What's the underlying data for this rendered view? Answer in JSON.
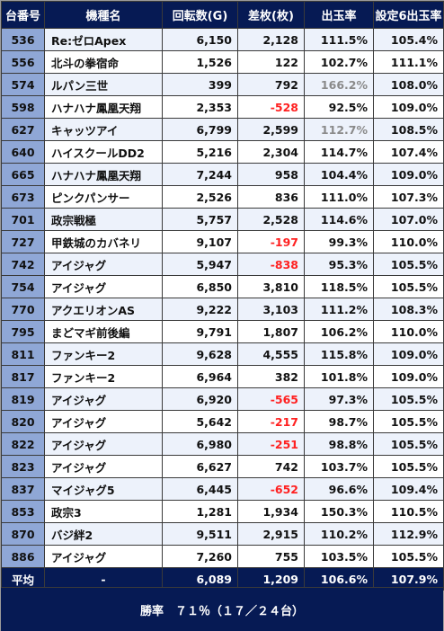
{
  "headers": [
    "台番号",
    "機種名",
    "回転数(G)",
    "差枚(枚)",
    "出玉率",
    "設定6出玉率"
  ],
  "rows": [
    {
      "no": "536",
      "name": "Re:ゼロApex",
      "spins": "6,150",
      "diff": "2,128",
      "rate": "111.5%",
      "set6": "105.4%",
      "diff_negative": false,
      "rate_muted": false
    },
    {
      "no": "556",
      "name": "北斗の拳宿命",
      "spins": "1,526",
      "diff": "122",
      "rate": "102.7%",
      "set6": "111.1%",
      "diff_negative": false,
      "rate_muted": false
    },
    {
      "no": "574",
      "name": "ルパン三世",
      "spins": "399",
      "diff": "792",
      "rate": "166.2%",
      "set6": "108.0%",
      "diff_negative": false,
      "rate_muted": true
    },
    {
      "no": "598",
      "name": "ハナハナ鳳凰天翔",
      "spins": "2,353",
      "diff": "-528",
      "rate": "92.5%",
      "set6": "109.0%",
      "diff_negative": true,
      "rate_muted": false
    },
    {
      "no": "627",
      "name": "キャッツアイ",
      "spins": "6,799",
      "diff": "2,599",
      "rate": "112.7%",
      "set6": "108.5%",
      "diff_negative": false,
      "rate_muted": true
    },
    {
      "no": "640",
      "name": "ハイスクールDD2",
      "spins": "5,216",
      "diff": "2,304",
      "rate": "114.7%",
      "set6": "107.4%",
      "diff_negative": false,
      "rate_muted": false
    },
    {
      "no": "665",
      "name": "ハナハナ鳳凰天翔",
      "spins": "7,244",
      "diff": "958",
      "rate": "104.4%",
      "set6": "109.0%",
      "diff_negative": false,
      "rate_muted": false
    },
    {
      "no": "673",
      "name": "ピンクパンサー",
      "spins": "2,526",
      "diff": "836",
      "rate": "111.0%",
      "set6": "107.3%",
      "diff_negative": false,
      "rate_muted": false
    },
    {
      "no": "701",
      "name": "政宗戦極",
      "spins": "5,757",
      "diff": "2,528",
      "rate": "114.6%",
      "set6": "107.0%",
      "diff_negative": false,
      "rate_muted": false
    },
    {
      "no": "727",
      "name": "甲鉄城のカバネリ",
      "spins": "9,107",
      "diff": "-197",
      "rate": "99.3%",
      "set6": "110.0%",
      "diff_negative": true,
      "rate_muted": false
    },
    {
      "no": "742",
      "name": "アイジャグ",
      "spins": "5,947",
      "diff": "-838",
      "rate": "95.3%",
      "set6": "105.5%",
      "diff_negative": true,
      "rate_muted": false
    },
    {
      "no": "754",
      "name": "アイジャグ",
      "spins": "6,850",
      "diff": "3,810",
      "rate": "118.5%",
      "set6": "105.5%",
      "diff_negative": false,
      "rate_muted": false
    },
    {
      "no": "770",
      "name": "アクエリオンAS",
      "spins": "9,222",
      "diff": "3,103",
      "rate": "111.2%",
      "set6": "108.3%",
      "diff_negative": false,
      "rate_muted": false
    },
    {
      "no": "795",
      "name": "まどマギ前後編",
      "spins": "9,791",
      "diff": "1,807",
      "rate": "106.2%",
      "set6": "110.0%",
      "diff_negative": false,
      "rate_muted": false
    },
    {
      "no": "811",
      "name": "ファンキー2",
      "spins": "9,628",
      "diff": "4,555",
      "rate": "115.8%",
      "set6": "109.0%",
      "diff_negative": false,
      "rate_muted": false
    },
    {
      "no": "817",
      "name": "ファンキー2",
      "spins": "6,964",
      "diff": "382",
      "rate": "101.8%",
      "set6": "109.0%",
      "diff_negative": false,
      "rate_muted": false
    },
    {
      "no": "819",
      "name": "アイジャグ",
      "spins": "6,920",
      "diff": "-565",
      "rate": "97.3%",
      "set6": "105.5%",
      "diff_negative": true,
      "rate_muted": false
    },
    {
      "no": "820",
      "name": "アイジャグ",
      "spins": "5,642",
      "diff": "-217",
      "rate": "98.7%",
      "set6": "105.5%",
      "diff_negative": true,
      "rate_muted": false
    },
    {
      "no": "822",
      "name": "アイジャグ",
      "spins": "6,980",
      "diff": "-251",
      "rate": "98.8%",
      "set6": "105.5%",
      "diff_negative": true,
      "rate_muted": false
    },
    {
      "no": "823",
      "name": "アイジャグ",
      "spins": "6,627",
      "diff": "742",
      "rate": "103.7%",
      "set6": "105.5%",
      "diff_negative": false,
      "rate_muted": false
    },
    {
      "no": "837",
      "name": "マイジャグ5",
      "spins": "6,445",
      "diff": "-652",
      "rate": "96.6%",
      "set6": "109.4%",
      "diff_negative": true,
      "rate_muted": false
    },
    {
      "no": "853",
      "name": "政宗3",
      "spins": "1,281",
      "diff": "1,934",
      "rate": "150.3%",
      "set6": "110.5%",
      "diff_negative": false,
      "rate_muted": false
    },
    {
      "no": "870",
      "name": "バジ絆2",
      "spins": "9,511",
      "diff": "2,915",
      "rate": "110.2%",
      "set6": "112.9%",
      "diff_negative": false,
      "rate_muted": false
    },
    {
      "no": "886",
      "name": "アイジャグ",
      "spins": "7,260",
      "diff": "755",
      "rate": "103.5%",
      "set6": "105.5%",
      "diff_negative": false,
      "rate_muted": false
    }
  ],
  "average": {
    "label": "平均",
    "name": "-",
    "spins": "6,089",
    "diff": "1,209",
    "rate": "106.6%",
    "set6": "107.9%"
  },
  "summary": "勝率　７１％（１７／２４台）",
  "colors": {
    "header_bg": "#061a54",
    "number_col_bg": "#8fa7d6",
    "odd_row_bg": "#edf2fb",
    "negative": "#ff2020",
    "muted_rate": "#8a8a8a"
  }
}
